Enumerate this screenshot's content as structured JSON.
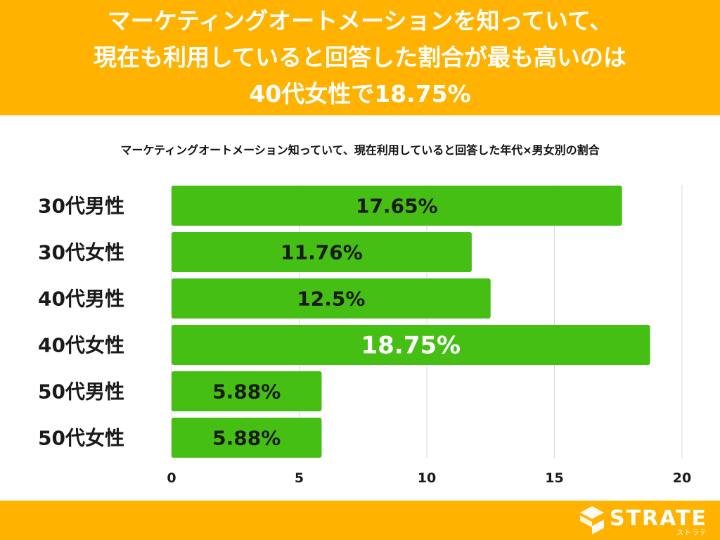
{
  "header": {
    "line1": "マーケティングオートメーションを知っていて、",
    "line2": "現在も利用していると回答した割合が最も高いのは",
    "line3": "40代女性で18.75%"
  },
  "chart_data": {
    "type": "bar",
    "orientation": "horizontal",
    "title": "マーケティングオートメーション知っていて、現在利用していると回答した年代×男女別の割合",
    "categories": [
      "30代男性",
      "30代女性",
      "40代男性",
      "40代女性",
      "50代男性",
      "50代女性"
    ],
    "values": [
      17.65,
      11.76,
      12.5,
      18.75,
      5.88,
      5.88
    ],
    "data_labels": [
      "17.65%",
      "11.76%",
      "12.5%",
      "18.75%",
      "5.88%",
      "5.88%"
    ],
    "highlight_index": 3,
    "xlim": [
      0,
      20
    ],
    "xticks": [
      0,
      5,
      10,
      15,
      20
    ],
    "grid": true,
    "xlabel": "",
    "ylabel": "",
    "colors": {
      "bar": "#45BF14",
      "label_default": "#1a1a1a",
      "label_highlight": "#ffffff",
      "grid": "#d9d9d9"
    }
  },
  "footer": {
    "logo_text": "STRATE",
    "logo_sub": "ストラテ"
  },
  "colors": {
    "accent": "#FFB300"
  }
}
